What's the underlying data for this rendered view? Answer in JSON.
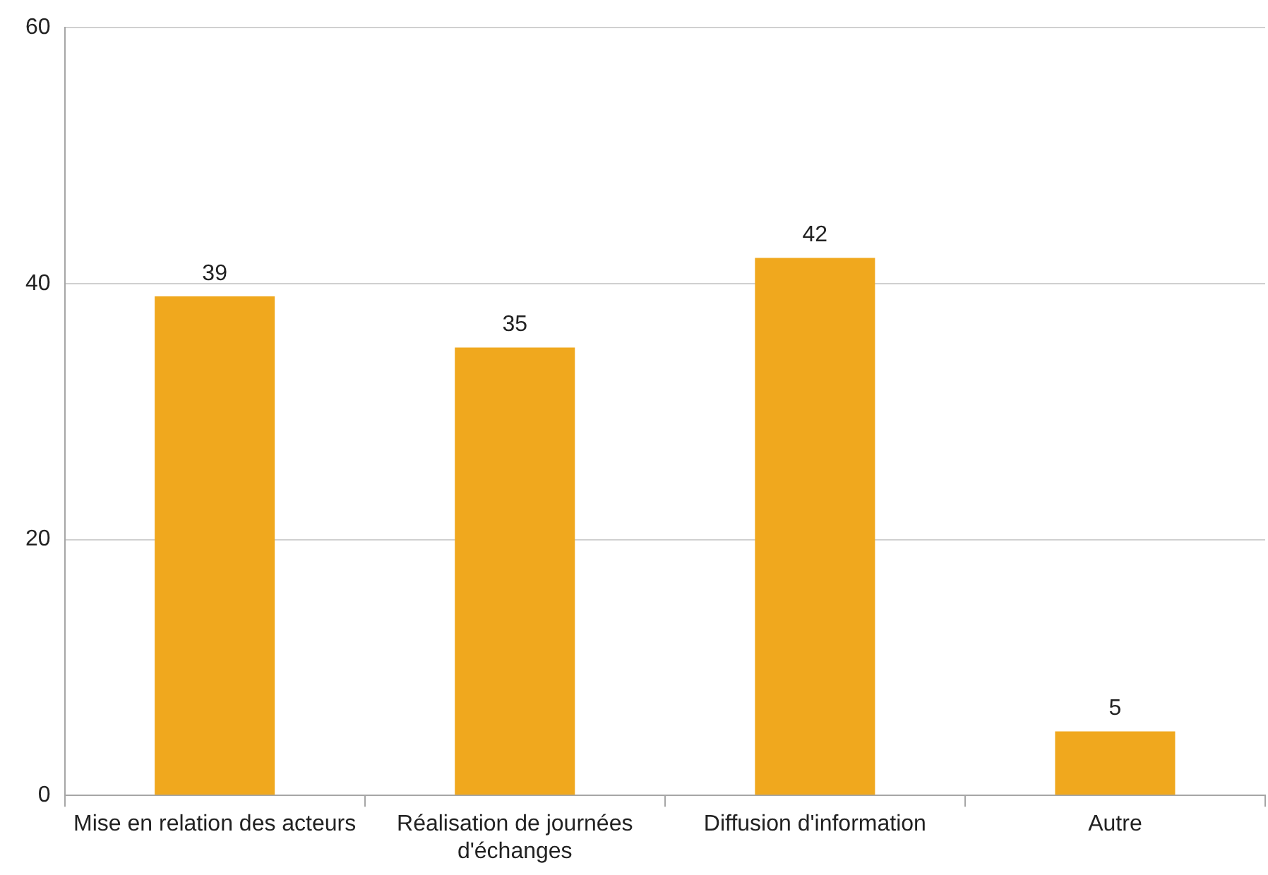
{
  "chart_data": {
    "type": "bar",
    "categories": [
      "Mise en relation des acteurs",
      "Réalisation de journées d'échanges",
      "Diffusion d'information",
      "Autre"
    ],
    "values": [
      39,
      35,
      42,
      5
    ],
    "color": "#f0a81e",
    "ylim": [
      0,
      60
    ],
    "yticks": [
      0,
      20,
      40,
      60
    ],
    "grid": "y",
    "data_labels": true
  }
}
